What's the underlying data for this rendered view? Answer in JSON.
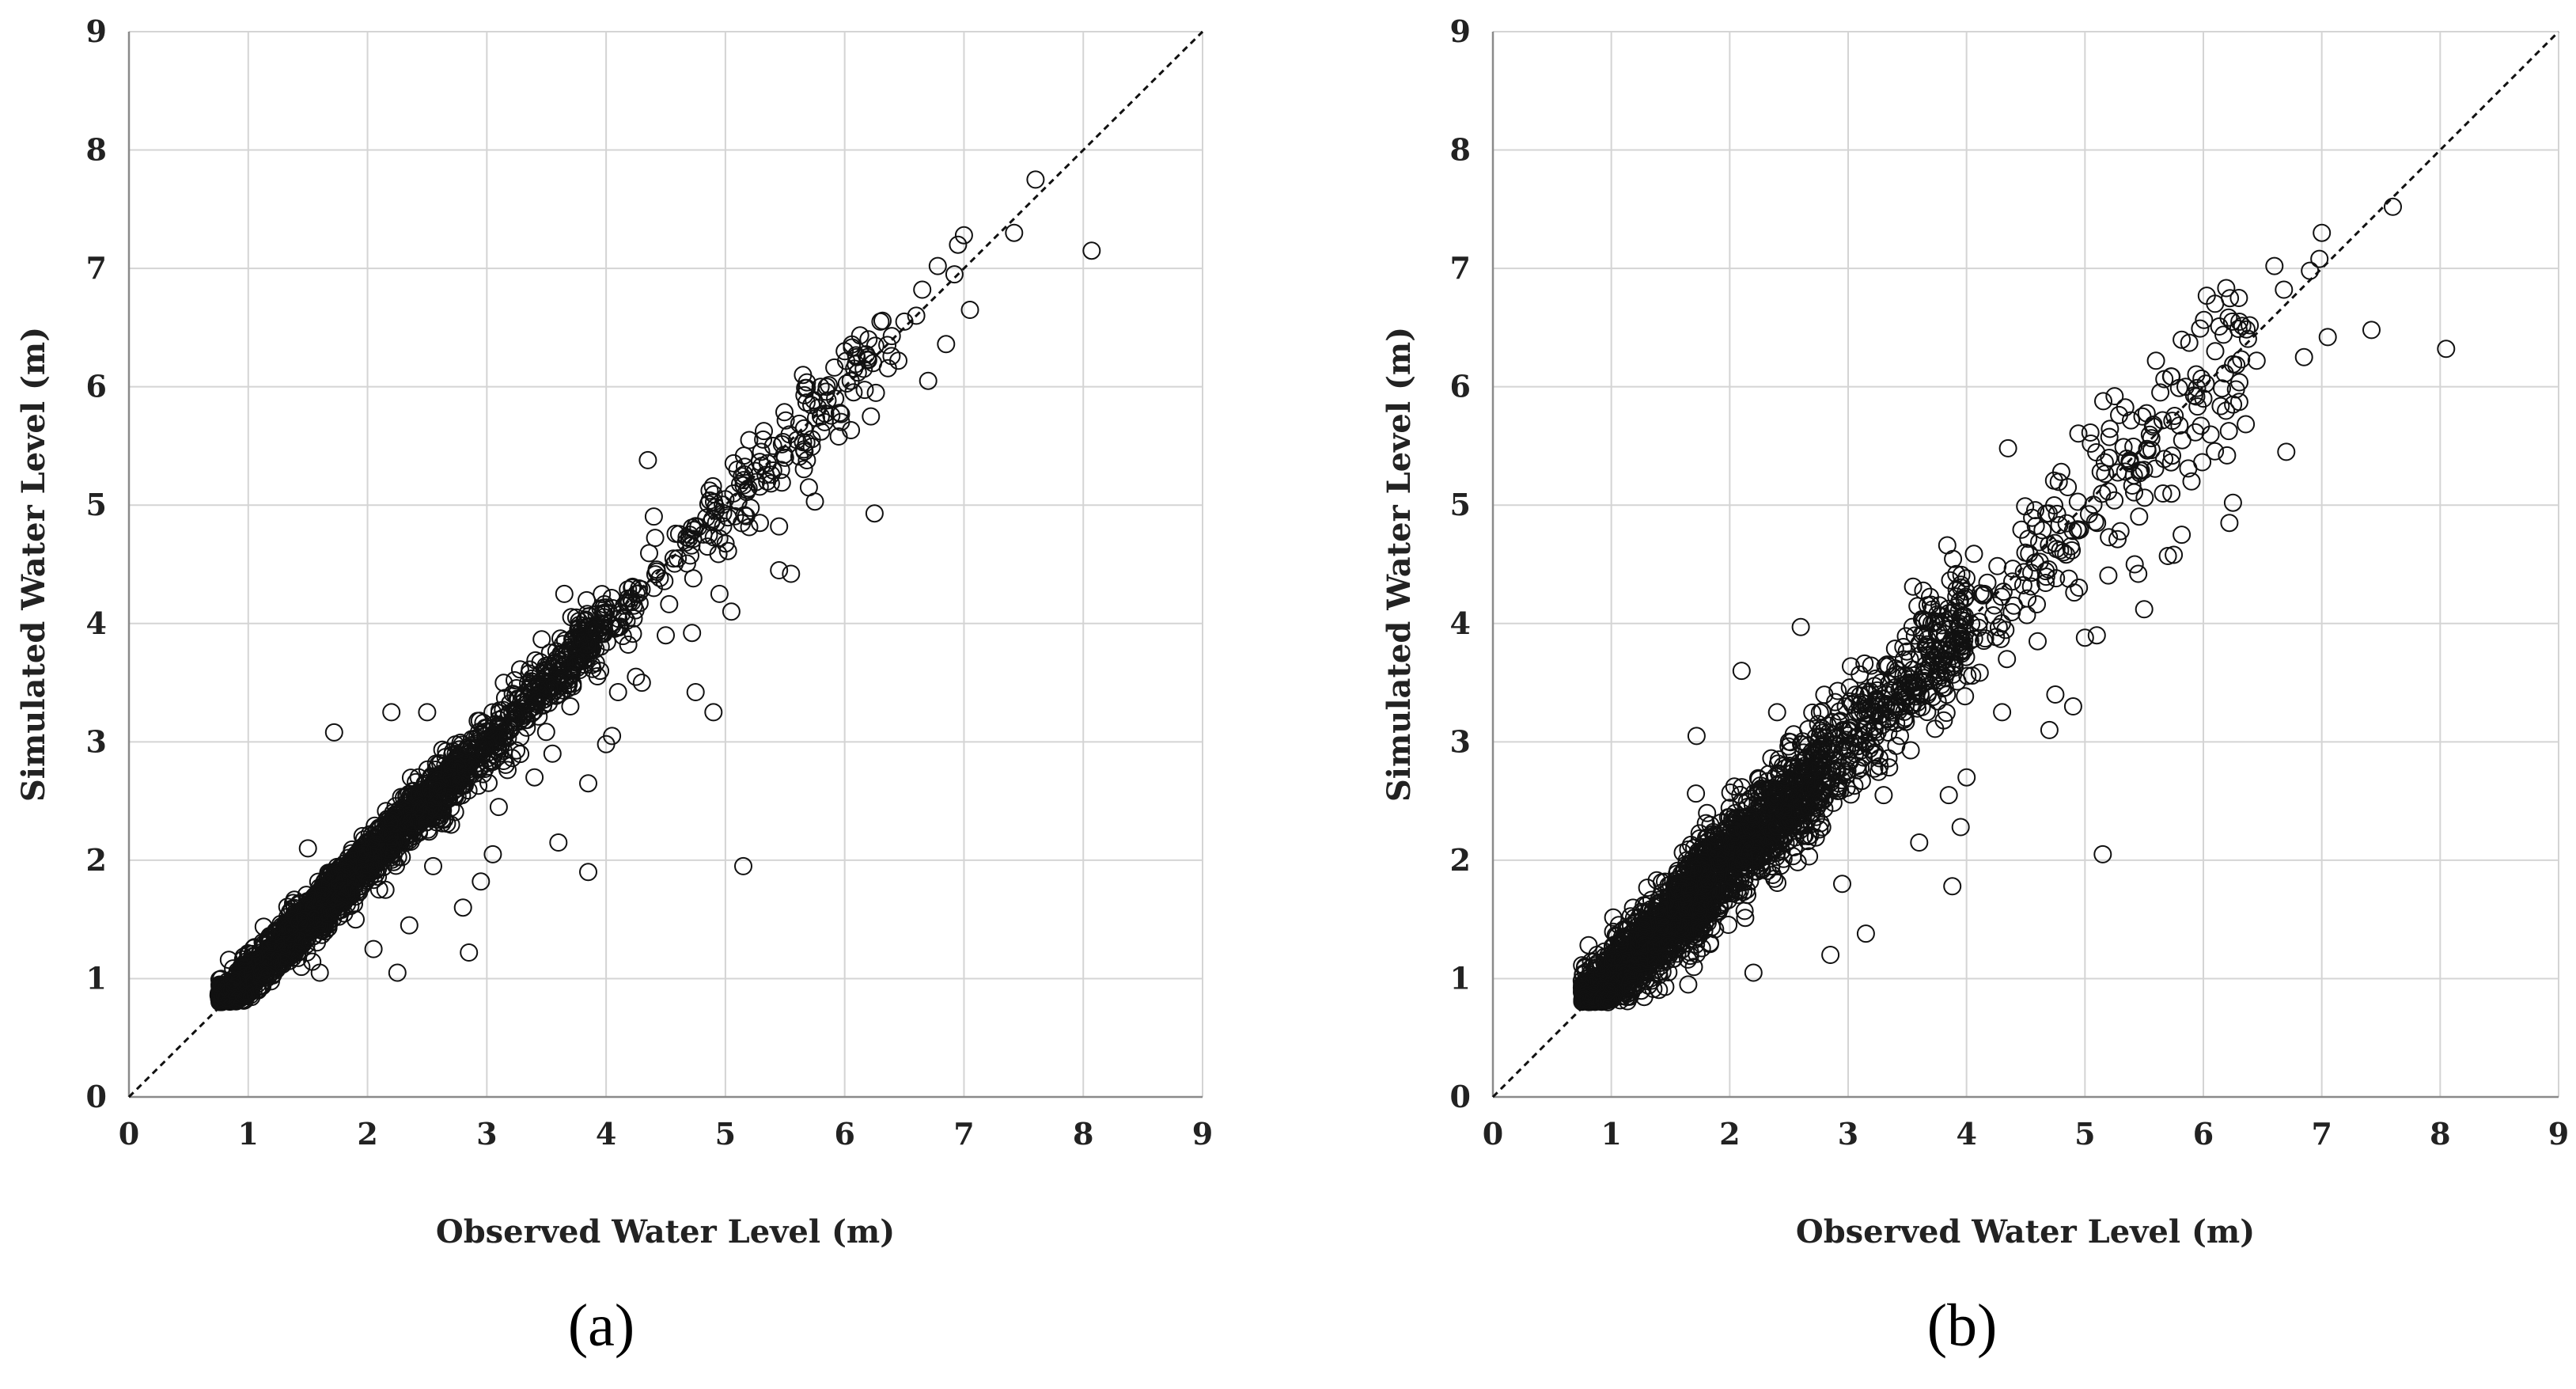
{
  "chart_data": [
    {
      "type": "scatter",
      "panel_label": "(a)",
      "xlabel": "Observed Water Level (m)",
      "ylabel": "Simulated Water Level (m)",
      "xlim": [
        0,
        9
      ],
      "ylim": [
        0,
        9
      ],
      "xticks": [
        "0",
        "1",
        "2",
        "3",
        "4",
        "5",
        "6",
        "7",
        "8",
        "9"
      ],
      "yticks": [
        "0",
        "1",
        "2",
        "3",
        "4",
        "5",
        "6",
        "7",
        "8",
        "9"
      ],
      "grid": true,
      "marker": "open-circle",
      "reference_line": {
        "style": "dashed",
        "from": [
          0,
          0
        ],
        "to": [
          9,
          9
        ]
      },
      "spread": 0.09,
      "points": [
        [
          8.07,
          7.15
        ],
        [
          7.6,
          7.75
        ],
        [
          7.42,
          7.3
        ],
        [
          7.05,
          6.65
        ],
        [
          7.0,
          7.28
        ],
        [
          6.95,
          7.2
        ],
        [
          6.92,
          6.95
        ],
        [
          6.85,
          6.36
        ],
        [
          6.78,
          7.02
        ],
        [
          6.7,
          6.05
        ],
        [
          6.65,
          6.82
        ],
        [
          6.6,
          6.6
        ],
        [
          6.5,
          6.55
        ],
        [
          6.45,
          6.22
        ],
        [
          6.3,
          6.55
        ],
        [
          6.25,
          4.93
        ],
        [
          6.22,
          5.75
        ],
        [
          6.2,
          6.4
        ],
        [
          6.1,
          6.25
        ],
        [
          6.05,
          6.05
        ],
        [
          6.0,
          6.3
        ],
        [
          5.95,
          5.58
        ],
        [
          5.92,
          5.9
        ],
        [
          5.85,
          6.0
        ],
        [
          5.8,
          5.75
        ],
        [
          5.75,
          5.03
        ],
        [
          5.7,
          5.15
        ],
        [
          5.65,
          6.1
        ],
        [
          5.6,
          5.55
        ],
        [
          5.55,
          4.42
        ],
        [
          5.5,
          5.4
        ],
        [
          5.45,
          4.45
        ],
        [
          5.45,
          4.82
        ],
        [
          5.4,
          5.5
        ],
        [
          5.3,
          5.45
        ],
        [
          5.2,
          5.55
        ],
        [
          5.15,
          1.95
        ],
        [
          5.1,
          5.3
        ],
        [
          5.05,
          4.1
        ],
        [
          5.0,
          5.05
        ],
        [
          4.95,
          4.25
        ],
        [
          4.9,
          3.25
        ],
        [
          4.85,
          4.65
        ],
        [
          4.75,
          3.42
        ],
        [
          4.72,
          3.92
        ],
        [
          4.7,
          4.75
        ],
        [
          4.6,
          4.55
        ],
        [
          4.5,
          3.9
        ],
        [
          4.4,
          4.3
        ],
        [
          4.35,
          5.38
        ],
        [
          4.3,
          3.5
        ],
        [
          4.25,
          3.55
        ],
        [
          4.15,
          4.15
        ],
        [
          4.1,
          3.42
        ],
        [
          4.05,
          3.05
        ],
        [
          4.0,
          2.98
        ],
        [
          3.95,
          3.6
        ],
        [
          3.85,
          1.9
        ],
        [
          3.85,
          2.65
        ],
        [
          3.75,
          4.05
        ],
        [
          3.7,
          3.3
        ],
        [
          3.65,
          4.25
        ],
        [
          3.6,
          2.15
        ],
        [
          3.55,
          2.9
        ],
        [
          3.4,
          2.7
        ],
        [
          3.3,
          3.2
        ],
        [
          3.1,
          2.45
        ],
        [
          3.05,
          2.05
        ],
        [
          2.95,
          1.82
        ],
        [
          2.85,
          1.22
        ],
        [
          2.8,
          1.6
        ],
        [
          2.7,
          2.3
        ],
        [
          2.55,
          1.95
        ],
        [
          2.5,
          3.25
        ],
        [
          2.35,
          1.45
        ],
        [
          2.25,
          1.05
        ],
        [
          2.2,
          3.25
        ],
        [
          2.15,
          1.75
        ],
        [
          2.05,
          1.25
        ],
        [
          1.9,
          1.5
        ],
        [
          1.72,
          3.08
        ],
        [
          1.6,
          1.05
        ],
        [
          1.5,
          2.1
        ]
      ]
    },
    {
      "type": "scatter",
      "panel_label": "(b)",
      "xlabel": "Observed Water Level (m)",
      "ylabel": "Simulated Water Level (m)",
      "xlim": [
        0,
        9
      ],
      "ylim": [
        0,
        9
      ],
      "xticks": [
        "0",
        "1",
        "2",
        "3",
        "4",
        "5",
        "6",
        "7",
        "8",
        "9"
      ],
      "yticks": [
        "0",
        "1",
        "2",
        "3",
        "4",
        "5",
        "6",
        "7",
        "8",
        "9"
      ],
      "grid": true,
      "marker": "open-circle",
      "reference_line": {
        "style": "dashed",
        "from": [
          0,
          0
        ],
        "to": [
          9,
          9
        ]
      },
      "spread": 0.17,
      "points": [
        [
          8.05,
          6.32
        ],
        [
          7.6,
          7.52
        ],
        [
          7.42,
          6.48
        ],
        [
          7.05,
          6.42
        ],
        [
          7.0,
          7.3
        ],
        [
          6.98,
          7.08
        ],
        [
          6.9,
          6.98
        ],
        [
          6.85,
          6.25
        ],
        [
          6.7,
          5.45
        ],
        [
          6.68,
          6.82
        ],
        [
          6.6,
          7.02
        ],
        [
          6.45,
          6.22
        ],
        [
          6.3,
          6.75
        ],
        [
          6.25,
          5.02
        ],
        [
          6.22,
          4.85
        ],
        [
          6.2,
          5.42
        ],
        [
          6.1,
          6.3
        ],
        [
          6.0,
          5.9
        ],
        [
          5.9,
          5.2
        ],
        [
          5.85,
          6.0
        ],
        [
          5.75,
          4.58
        ],
        [
          5.7,
          4.57
        ],
        [
          5.6,
          6.22
        ],
        [
          5.5,
          4.12
        ],
        [
          5.45,
          4.42
        ],
        [
          5.42,
          4.5
        ],
        [
          5.3,
          4.78
        ],
        [
          5.15,
          2.05
        ],
        [
          5.1,
          3.9
        ],
        [
          5.0,
          3.88
        ],
        [
          4.9,
          3.3
        ],
        [
          4.75,
          3.4
        ],
        [
          4.7,
          3.1
        ],
        [
          4.6,
          3.85
        ],
        [
          4.35,
          5.48
        ],
        [
          4.3,
          3.25
        ],
        [
          4.15,
          4.25
        ],
        [
          4.0,
          2.7
        ],
        [
          3.95,
          2.28
        ],
        [
          3.9,
          3.7
        ],
        [
          3.88,
          1.78
        ],
        [
          3.85,
          2.55
        ],
        [
          3.6,
          2.15
        ],
        [
          3.55,
          3.5
        ],
        [
          3.3,
          2.55
        ],
        [
          3.15,
          1.38
        ],
        [
          2.95,
          1.8
        ],
        [
          2.85,
          1.2
        ],
        [
          2.6,
          3.97
        ],
        [
          2.4,
          3.25
        ],
        [
          2.2,
          1.05
        ],
        [
          2.1,
          3.6
        ],
        [
          1.72,
          3.05
        ],
        [
          1.65,
          0.95
        ],
        [
          1.4,
          1.05
        ],
        [
          3.75,
          3.92
        ],
        [
          4.8,
          5.28
        ],
        [
          5.25,
          5.92
        ],
        [
          5.05,
          5.52
        ]
      ]
    }
  ]
}
